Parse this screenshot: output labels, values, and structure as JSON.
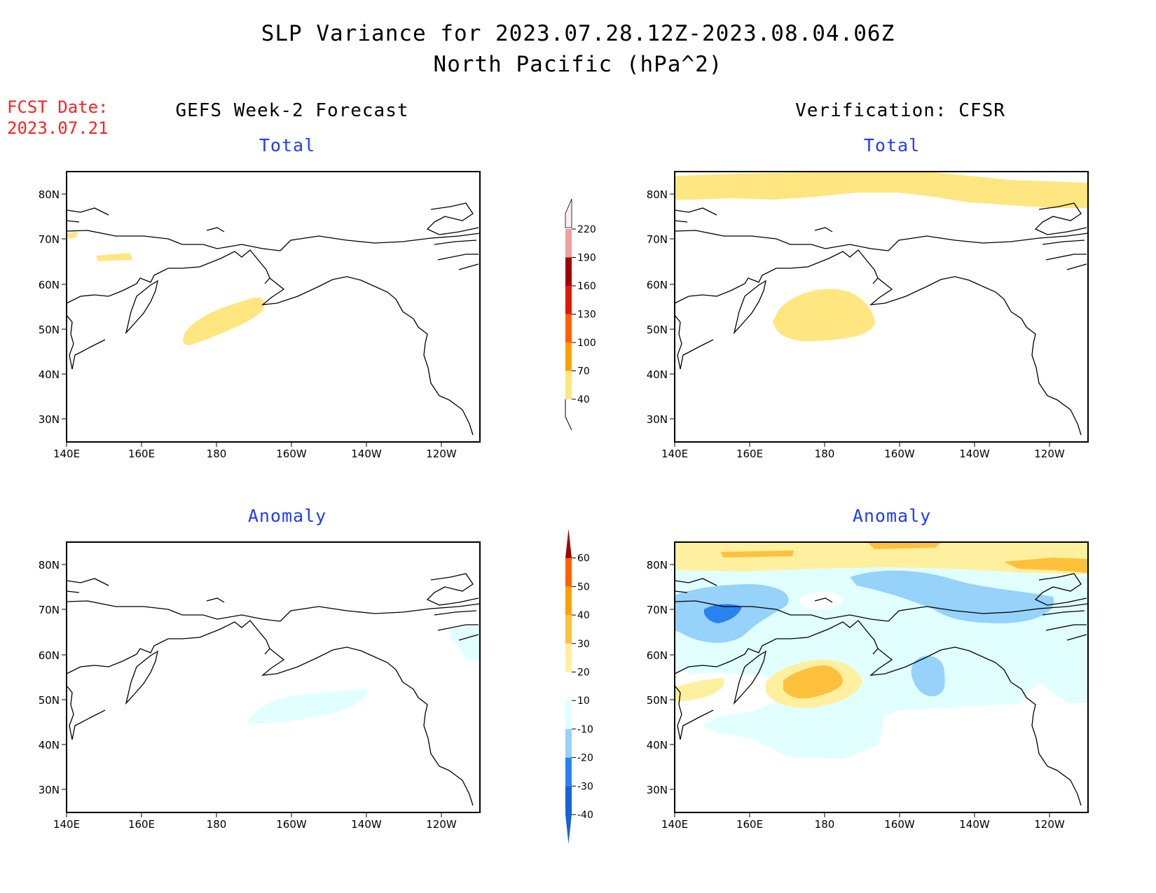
{
  "header": {
    "title_line1": "SLP Variance for 2023.07.28.12Z-2023.08.04.06Z",
    "title_line2": "North Pacific (hPa^2)",
    "fcst_label": "FCST Date:",
    "fcst_date": "2023.07.21"
  },
  "columns": {
    "left_title": "GEFS Week-2 Forecast",
    "right_title": "Verification: CFSR"
  },
  "panels": [
    {
      "id": "forecast-total",
      "subtitle": "Total"
    },
    {
      "id": "verification-total",
      "subtitle": "Total"
    },
    {
      "id": "forecast-anomaly",
      "subtitle": "Anomaly"
    },
    {
      "id": "verification-anomaly",
      "subtitle": "Anomaly"
    }
  ],
  "axes": {
    "lon_labels": [
      "140E",
      "160E",
      "180",
      "160W",
      "140W",
      "120W"
    ],
    "lat_labels": [
      "80N",
      "70N",
      "60N",
      "50N",
      "40N",
      "30N"
    ]
  },
  "colorbars": {
    "total": {
      "levels": [
        "40",
        "70",
        "100",
        "130",
        "160",
        "190",
        "220"
      ],
      "colors": [
        "#ffe680",
        "#ffa000",
        "#ff6000",
        "#e01a00",
        "#a00000",
        "#f0a0a0",
        "#ffdcdc"
      ]
    },
    "anomaly": {
      "levels": [
        "-40",
        "-30",
        "-20",
        "-10",
        "10",
        "20",
        "30",
        "40",
        "50",
        "60"
      ],
      "colors": [
        "#1464d2",
        "#2882f0",
        "#96d2fa",
        "#e1ffff",
        "#ffffff",
        "#fff0a0",
        "#ffc03c",
        "#ffa000",
        "#ff6000",
        "#e01a00",
        "#a00000"
      ]
    }
  }
}
